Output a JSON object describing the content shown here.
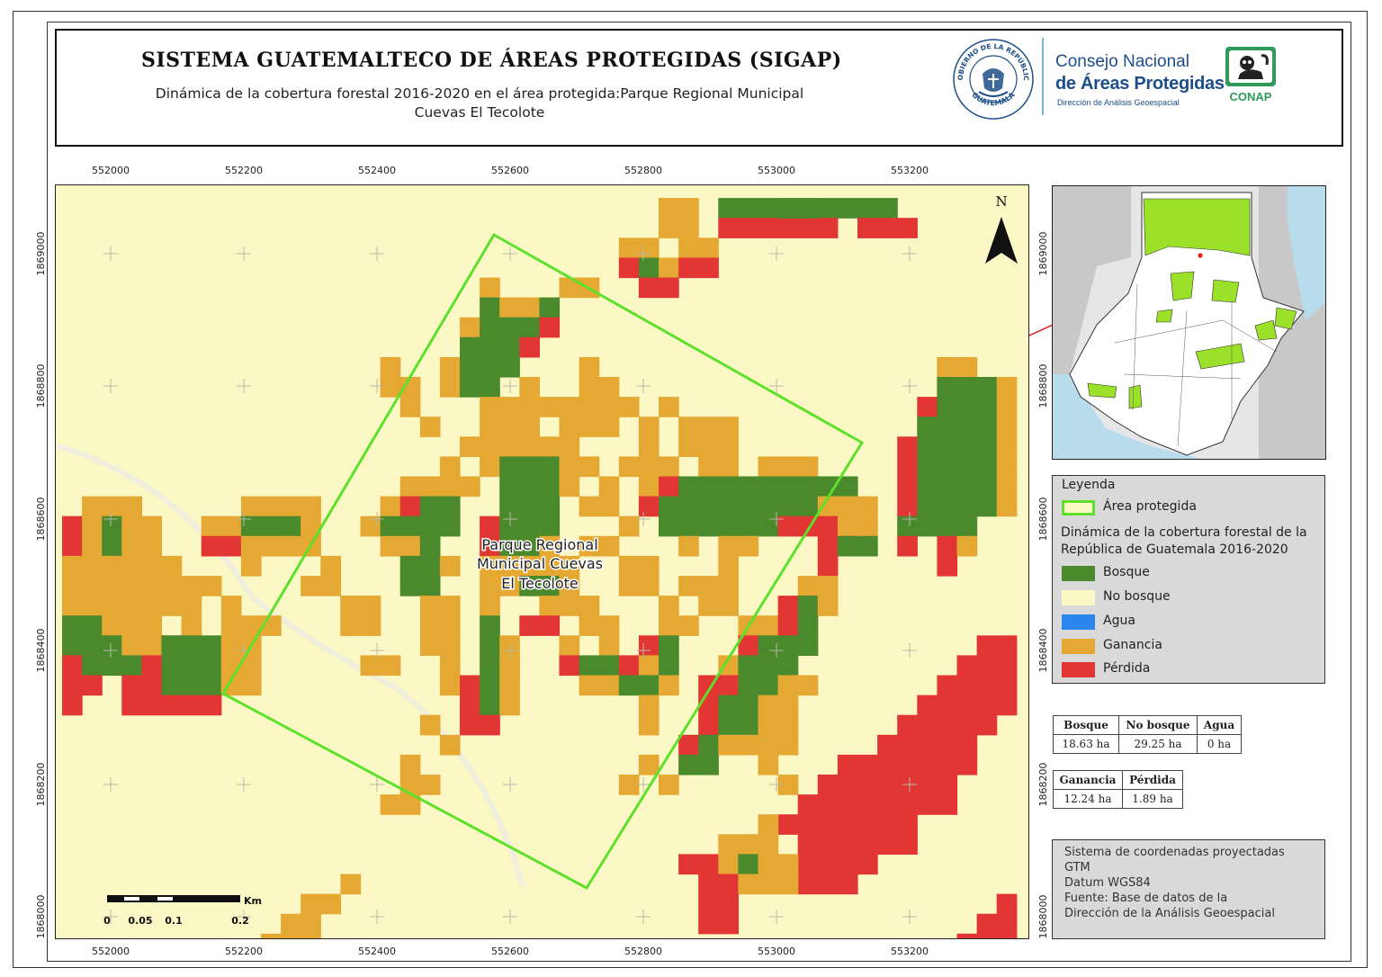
{
  "header": {
    "title": "SISTEMA GUATEMALTECO DE ÁREAS PROTEGIDAS  (SIGAP)",
    "subtitle_line1": "Dinámica de la cobertura forestal 2016-2020 en el área protegida:Parque Regional Municipal",
    "subtitle_line2": "Cuevas El Tecolote",
    "seal_text_top": "GOBIERNO DE LA REPÚBLICA",
    "seal_text_bottom": "GUATEMALA",
    "org_line1": "Consejo Nacional",
    "org_line2": "de Áreas Protegidas",
    "org_line3": "Dirección de Análisis Geoespacial",
    "logo_text": "CONAP"
  },
  "map": {
    "x_ticks": [
      "552000",
      "552200",
      "552400",
      "552600",
      "552800",
      "553000",
      "553200"
    ],
    "y_ticks": [
      "1869000",
      "1868800",
      "1868600",
      "1868400",
      "1868200",
      "1868000"
    ],
    "area_label_lines": [
      "Parque Regional",
      "Municipal Cuevas",
      "El Tecolote"
    ],
    "north_label": "N",
    "scale_unit": "Km",
    "scale_labels": [
      "0",
      "0.05",
      "0.1",
      "0.2"
    ]
  },
  "legend": {
    "heading": "Leyenda",
    "boundary_label": "Área protegida",
    "description": "Dinámica de la cobertura forestal de la República de Guatemala 2016-2020",
    "classes": [
      {
        "label": "Bosque",
        "color": "#4a8a2c"
      },
      {
        "label": "No bosque",
        "color": "#fbf8c6"
      },
      {
        "label": "Agua",
        "color": "#2b86ee"
      },
      {
        "label": "Ganancia",
        "color": "#e5a832"
      },
      {
        "label": "Pérdida",
        "color": "#e23634"
      }
    ]
  },
  "stats1": {
    "headers": [
      "Bosque",
      "No bosque",
      "Agua"
    ],
    "values": [
      "18.63 ha",
      "29.25 ha",
      "0 ha"
    ]
  },
  "stats2": {
    "headers": [
      "Ganancia",
      "Pérdida"
    ],
    "values": [
      "12.24 ha",
      "1.89 ha"
    ]
  },
  "info": {
    "lines": [
      "Sistema de coordenadas proyectadas",
      "GTM",
      "Datum WGS84",
      "Fuente: Base de datos de la",
      "Dirección de la Análisis Geoespacial"
    ]
  },
  "colors": {
    "bosque": "#4a8a2c",
    "no_bosque": "#fbf8c6",
    "ganancia": "#e5a832",
    "perdida": "#e23634",
    "boundary": "#5ee02a"
  }
}
